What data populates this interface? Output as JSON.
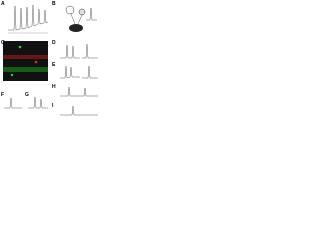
{
  "panels": [
    {
      "label": "A"
    },
    {
      "label": "B"
    },
    {
      "label": "C"
    },
    {
      "label": "D"
    },
    {
      "label": "E"
    },
    {
      "label": "F"
    },
    {
      "label": "G"
    },
    {
      "label": "H"
    },
    {
      "label": "I"
    }
  ]
}
